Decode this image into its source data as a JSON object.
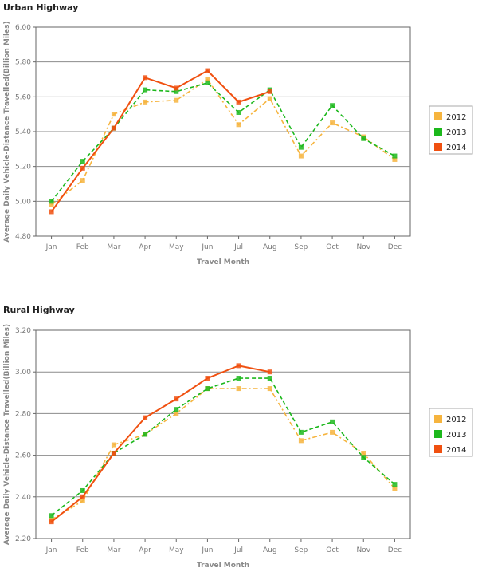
{
  "colors": {
    "2012": "#f6b43e",
    "2013": "#1cb81c",
    "2014": "#f05010",
    "grid": "#8c8c8c",
    "frame": "#666666"
  },
  "chart_data": [
    {
      "type": "line",
      "title": "Urban Highway",
      "xlabel": "Travel Month",
      "ylabel": "Average Daily Vehicle-Distance Travelled(Billion Miles)",
      "categories": [
        "Jan",
        "Feb",
        "Mar",
        "Apr",
        "May",
        "Jun",
        "Jul",
        "Aug",
        "Sep",
        "Oct",
        "Nov",
        "Dec"
      ],
      "ylim": [
        4.8,
        6.0
      ],
      "yticks": [
        "4.80",
        "5.00",
        "5.20",
        "5.40",
        "5.60",
        "5.80",
        "6.00"
      ],
      "grid": true,
      "legend": "right",
      "series": [
        {
          "name": "2012",
          "values": [
            4.98,
            5.12,
            5.5,
            5.57,
            5.58,
            5.7,
            5.44,
            5.59,
            5.26,
            5.45,
            5.37,
            5.24
          ]
        },
        {
          "name": "2013",
          "values": [
            5.0,
            5.23,
            5.42,
            5.64,
            5.63,
            5.68,
            5.51,
            5.64,
            5.31,
            5.55,
            5.36,
            5.26
          ]
        },
        {
          "name": "2014",
          "values": [
            4.94,
            5.19,
            5.42,
            5.71,
            5.65,
            5.75,
            5.57,
            5.63,
            null,
            null,
            null,
            null
          ]
        }
      ]
    },
    {
      "type": "line",
      "title": "Rural Highway",
      "xlabel": "Travel Month",
      "ylabel": "Average Daily Vehicle-Distance Travelled(Billion Miles)",
      "categories": [
        "Jan",
        "Feb",
        "Mar",
        "Apr",
        "May",
        "Jun",
        "Jul",
        "Aug",
        "Sep",
        "Oct",
        "Nov",
        "Dec"
      ],
      "ylim": [
        2.2,
        3.2
      ],
      "yticks": [
        "2.20",
        "2.40",
        "2.60",
        "2.80",
        "3.00",
        "3.20"
      ],
      "grid": true,
      "legend": "right",
      "series": [
        {
          "name": "2012",
          "values": [
            2.29,
            2.38,
            2.65,
            2.7,
            2.8,
            2.92,
            2.92,
            2.92,
            2.67,
            2.71,
            2.61,
            2.44
          ]
        },
        {
          "name": "2013",
          "values": [
            2.31,
            2.43,
            2.61,
            2.7,
            2.82,
            2.92,
            2.97,
            2.97,
            2.71,
            2.76,
            2.59,
            2.46
          ]
        },
        {
          "name": "2014",
          "values": [
            2.28,
            2.4,
            2.61,
            2.78,
            2.87,
            2.97,
            3.03,
            3.0,
            null,
            null,
            null,
            null
          ]
        }
      ]
    }
  ]
}
